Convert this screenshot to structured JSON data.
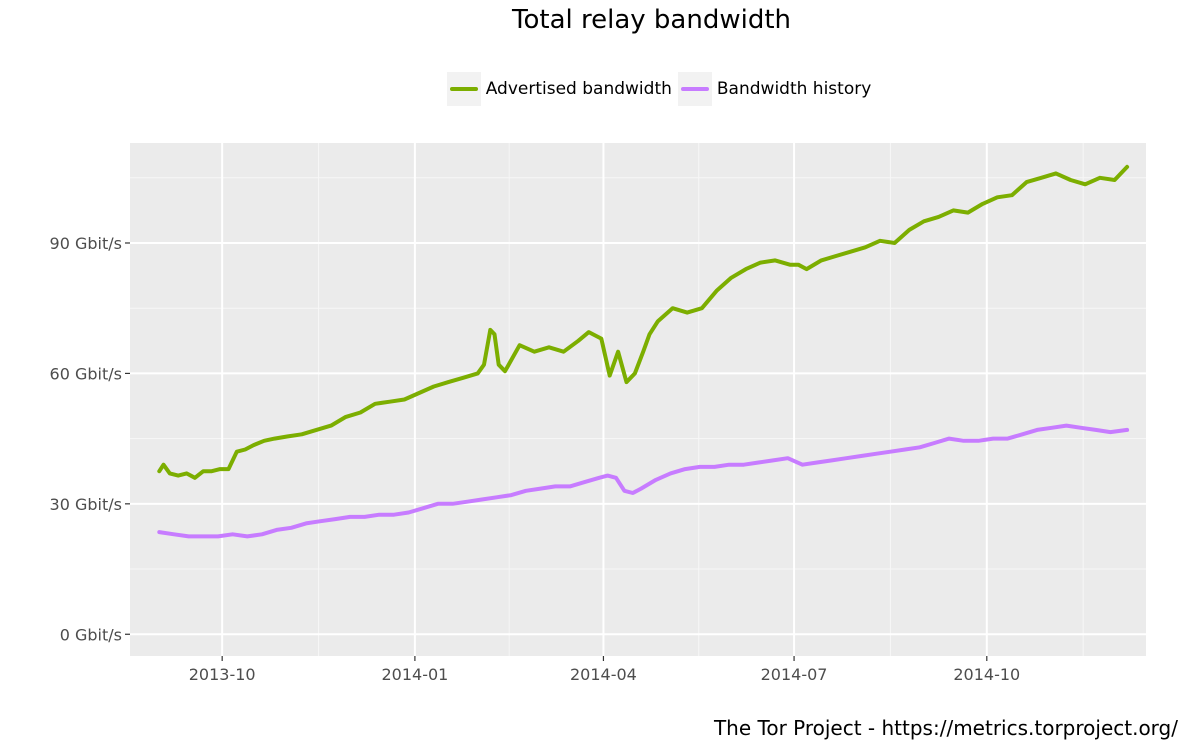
{
  "chart_data": {
    "type": "line",
    "title": "Total relay bandwidth",
    "xlabel": "",
    "ylabel": "",
    "y_tick_labels": [
      "0 Gbit/s",
      "30 Gbit/s",
      "60 Gbit/s",
      "90 Gbit/s"
    ],
    "y_ticks": [
      0,
      30,
      60,
      90
    ],
    "ylim": [
      -5,
      113
    ],
    "x_tick_labels": [
      "2013-10",
      "2014-01",
      "2014-04",
      "2014-07",
      "2014-10"
    ],
    "x_ticks": [
      "2013-10-01",
      "2014-01-01",
      "2014-04-01",
      "2014-07-01",
      "2014-10-01"
    ],
    "xlim": [
      "2013-08-18",
      "2014-12-16"
    ],
    "grid": true,
    "legend_position": "top",
    "series": [
      {
        "name": "Advertised bandwidth",
        "color": "#7cae00",
        "x": [
          "2013-09-01",
          "2013-09-03",
          "2013-09-06",
          "2013-09-10",
          "2013-09-14",
          "2013-09-18",
          "2013-09-22",
          "2013-09-26",
          "2013-09-30",
          "2013-10-04",
          "2013-10-08",
          "2013-10-12",
          "2013-10-16",
          "2013-10-21",
          "2013-10-26",
          "2013-11-01",
          "2013-11-08",
          "2013-11-15",
          "2013-11-22",
          "2013-11-29",
          "2013-12-06",
          "2013-12-13",
          "2013-12-20",
          "2013-12-27",
          "2014-01-03",
          "2014-01-10",
          "2014-01-17",
          "2014-01-24",
          "2014-01-31",
          "2014-02-03",
          "2014-02-06",
          "2014-02-08",
          "2014-02-10",
          "2014-02-13",
          "2014-02-20",
          "2014-02-27",
          "2014-03-06",
          "2014-03-13",
          "2014-03-20",
          "2014-03-25",
          "2014-03-31",
          "2014-04-04",
          "2014-04-08",
          "2014-04-12",
          "2014-04-16",
          "2014-04-20",
          "2014-04-23",
          "2014-04-27",
          "2014-05-04",
          "2014-05-11",
          "2014-05-18",
          "2014-05-25",
          "2014-06-01",
          "2014-06-08",
          "2014-06-15",
          "2014-06-22",
          "2014-06-29",
          "2014-07-03",
          "2014-07-07",
          "2014-07-14",
          "2014-07-21",
          "2014-07-28",
          "2014-08-04",
          "2014-08-11",
          "2014-08-18",
          "2014-08-25",
          "2014-09-01",
          "2014-09-08",
          "2014-09-15",
          "2014-09-22",
          "2014-09-29",
          "2014-10-06",
          "2014-10-13",
          "2014-10-20",
          "2014-10-27",
          "2014-11-03",
          "2014-11-10",
          "2014-11-17",
          "2014-11-24",
          "2014-12-01",
          "2014-12-07"
        ],
        "values": [
          37.5,
          39,
          37,
          36.5,
          37,
          36,
          37.5,
          37.5,
          38,
          38,
          42,
          42.5,
          43.5,
          44.5,
          45,
          45.5,
          46,
          47,
          48,
          50,
          51,
          53,
          53.5,
          54,
          55.5,
          57,
          58,
          59,
          60,
          62,
          70,
          69,
          62,
          60.5,
          66.5,
          65,
          66,
          65,
          67.5,
          69.5,
          68,
          59.5,
          65,
          58,
          60,
          65,
          69,
          72,
          75,
          74,
          75,
          79,
          82,
          84,
          85.5,
          86,
          85,
          85,
          84,
          86,
          87,
          88,
          89,
          90.5,
          90,
          93,
          95,
          96,
          97.5,
          97,
          99,
          100.5,
          101,
          104,
          105,
          106,
          104.5,
          103.5,
          105,
          104.5,
          107.5
        ]
      },
      {
        "name": "Bandwidth history",
        "color": "#c77cff",
        "x": [
          "2013-09-01",
          "2013-09-08",
          "2013-09-15",
          "2013-09-22",
          "2013-09-29",
          "2013-10-06",
          "2013-10-13",
          "2013-10-20",
          "2013-10-27",
          "2013-11-03",
          "2013-11-10",
          "2013-11-17",
          "2013-11-24",
          "2013-12-01",
          "2013-12-08",
          "2013-12-15",
          "2013-12-22",
          "2013-12-29",
          "2014-01-05",
          "2014-01-12",
          "2014-01-19",
          "2014-01-26",
          "2014-02-02",
          "2014-02-09",
          "2014-02-16",
          "2014-02-23",
          "2014-03-02",
          "2014-03-09",
          "2014-03-16",
          "2014-03-23",
          "2014-03-30",
          "2014-04-03",
          "2014-04-07",
          "2014-04-11",
          "2014-04-15",
          "2014-04-19",
          "2014-04-26",
          "2014-05-03",
          "2014-05-10",
          "2014-05-17",
          "2014-05-24",
          "2014-05-31",
          "2014-06-07",
          "2014-06-14",
          "2014-06-21",
          "2014-06-28",
          "2014-07-05",
          "2014-07-12",
          "2014-07-19",
          "2014-07-26",
          "2014-08-02",
          "2014-08-09",
          "2014-08-16",
          "2014-08-23",
          "2014-08-30",
          "2014-09-06",
          "2014-09-13",
          "2014-09-20",
          "2014-09-27",
          "2014-10-04",
          "2014-10-11",
          "2014-10-18",
          "2014-10-25",
          "2014-11-01",
          "2014-11-08",
          "2014-11-15",
          "2014-11-22",
          "2014-11-29",
          "2014-12-07"
        ],
        "values": [
          23.5,
          23,
          22.5,
          22.5,
          22.5,
          23,
          22.5,
          23,
          24,
          24.5,
          25.5,
          26,
          26.5,
          27,
          27,
          27.5,
          27.5,
          28,
          29,
          30,
          30,
          30.5,
          31,
          31.5,
          32,
          33,
          33.5,
          34,
          34,
          35,
          36,
          36.5,
          36,
          33,
          32.5,
          33.5,
          35.5,
          37,
          38,
          38.5,
          38.5,
          39,
          39,
          39.5,
          40,
          40.5,
          39,
          39.5,
          40,
          40.5,
          41,
          41.5,
          42,
          42.5,
          43,
          44,
          45,
          44.5,
          44.5,
          45,
          45,
          46,
          47,
          47.5,
          48,
          47.5,
          47,
          46.5,
          47
        ]
      }
    ]
  },
  "footer": {
    "credit": "The Tor Project - https://metrics.torproject.org/"
  }
}
